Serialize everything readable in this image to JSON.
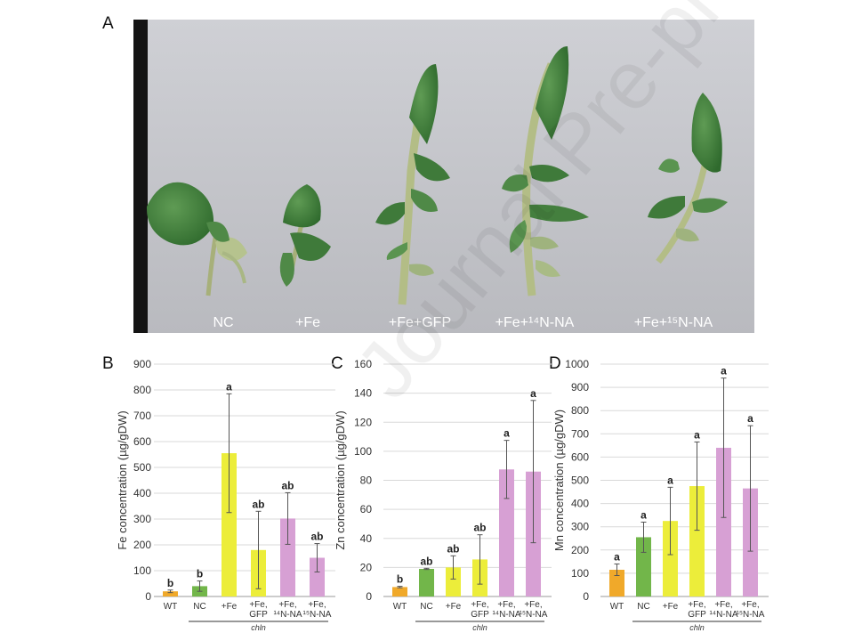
{
  "panels": {
    "A": "A",
    "B": "B",
    "C": "C",
    "D": "D"
  },
  "photo_labels": [
    "NC",
    "+Fe",
    "+Fe+GFP",
    "+Fe+¹⁴N-NA",
    "+Fe+¹⁵N-NA"
  ],
  "watermark": "Journal Pre-proof",
  "colors": {
    "WT": "#f0a92a",
    "NC": "#72b64a",
    "Fe": "#eced3a",
    "NA": "#d7a0d4",
    "error": "#555555"
  },
  "chart_data": [
    {
      "type": "bar",
      "panel": "B",
      "categories": [
        "WT",
        "NC",
        "+Fe",
        "+Fe, GFP",
        "+Fe, ¹⁴N-NA",
        "+Fe, ¹⁵N-NA"
      ],
      "values": [
        20,
        40,
        555,
        180,
        302,
        150
      ],
      "errors": [
        5,
        20,
        230,
        150,
        100,
        55
      ],
      "letters": [
        "b",
        "b",
        "a",
        "ab",
        "ab",
        "ab"
      ],
      "ylabel": "Fe concentration (µg/gDW)",
      "ylim": [
        0,
        900
      ],
      "yticks": [
        0,
        100,
        200,
        300,
        400,
        500,
        600,
        700,
        800,
        900
      ],
      "group_label": "chln",
      "grid": true
    },
    {
      "type": "bar",
      "panel": "C",
      "categories": [
        "WT",
        "NC",
        "+Fe",
        "+Fe, GFP",
        "+Fe, ¹⁴N-NA",
        "+Fe, ¹⁵N-NA"
      ],
      "values": [
        6.5,
        19,
        20,
        25.5,
        87.5,
        86
      ],
      "errors": [
        0.5,
        0.4,
        8,
        17,
        20,
        49
      ],
      "letters": [
        "b",
        "ab",
        "ab",
        "ab",
        "a",
        "a"
      ],
      "ylabel": "Zn concentration (µg/gDW)",
      "ylim": [
        0,
        160
      ],
      "yticks": [
        0,
        20,
        40,
        60,
        80,
        100,
        120,
        140,
        160
      ],
      "group_label": "chln",
      "grid": true
    },
    {
      "type": "bar",
      "panel": "D",
      "categories": [
        "WT",
        "NC",
        "+Fe",
        "+Fe, GFP",
        "+Fe, ¹⁴N-NA",
        "+Fe, ¹⁵N-NA"
      ],
      "values": [
        115,
        255,
        325,
        475,
        640,
        465
      ],
      "errors": [
        25,
        65,
        145,
        190,
        300,
        270
      ],
      "letters": [
        "a",
        "a",
        "a",
        "a",
        "a",
        "a"
      ],
      "ylabel": "Mn concentration (µg/gDW)",
      "ylim": [
        0,
        1000
      ],
      "yticks": [
        0,
        100,
        200,
        300,
        400,
        500,
        600,
        700,
        800,
        900,
        1000
      ],
      "group_label": "chln",
      "grid": true
    }
  ]
}
